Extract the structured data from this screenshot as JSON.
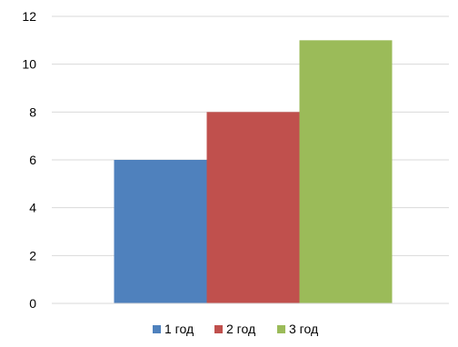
{
  "chart_data": {
    "type": "bar",
    "title": "",
    "xlabel": "",
    "ylabel": "",
    "ylim": [
      0,
      12
    ],
    "yticks": [
      "0",
      "2",
      "4",
      "6",
      "8",
      "10",
      "12"
    ],
    "grid": "horizontal",
    "legend": "bottom",
    "series": [
      {
        "name": "1 год",
        "value": 6,
        "color": "#4F81BD"
      },
      {
        "name": "2 год",
        "value": 8,
        "color": "#C0504D"
      },
      {
        "name": "3 год",
        "value": 11,
        "color": "#9BBB59"
      }
    ]
  }
}
